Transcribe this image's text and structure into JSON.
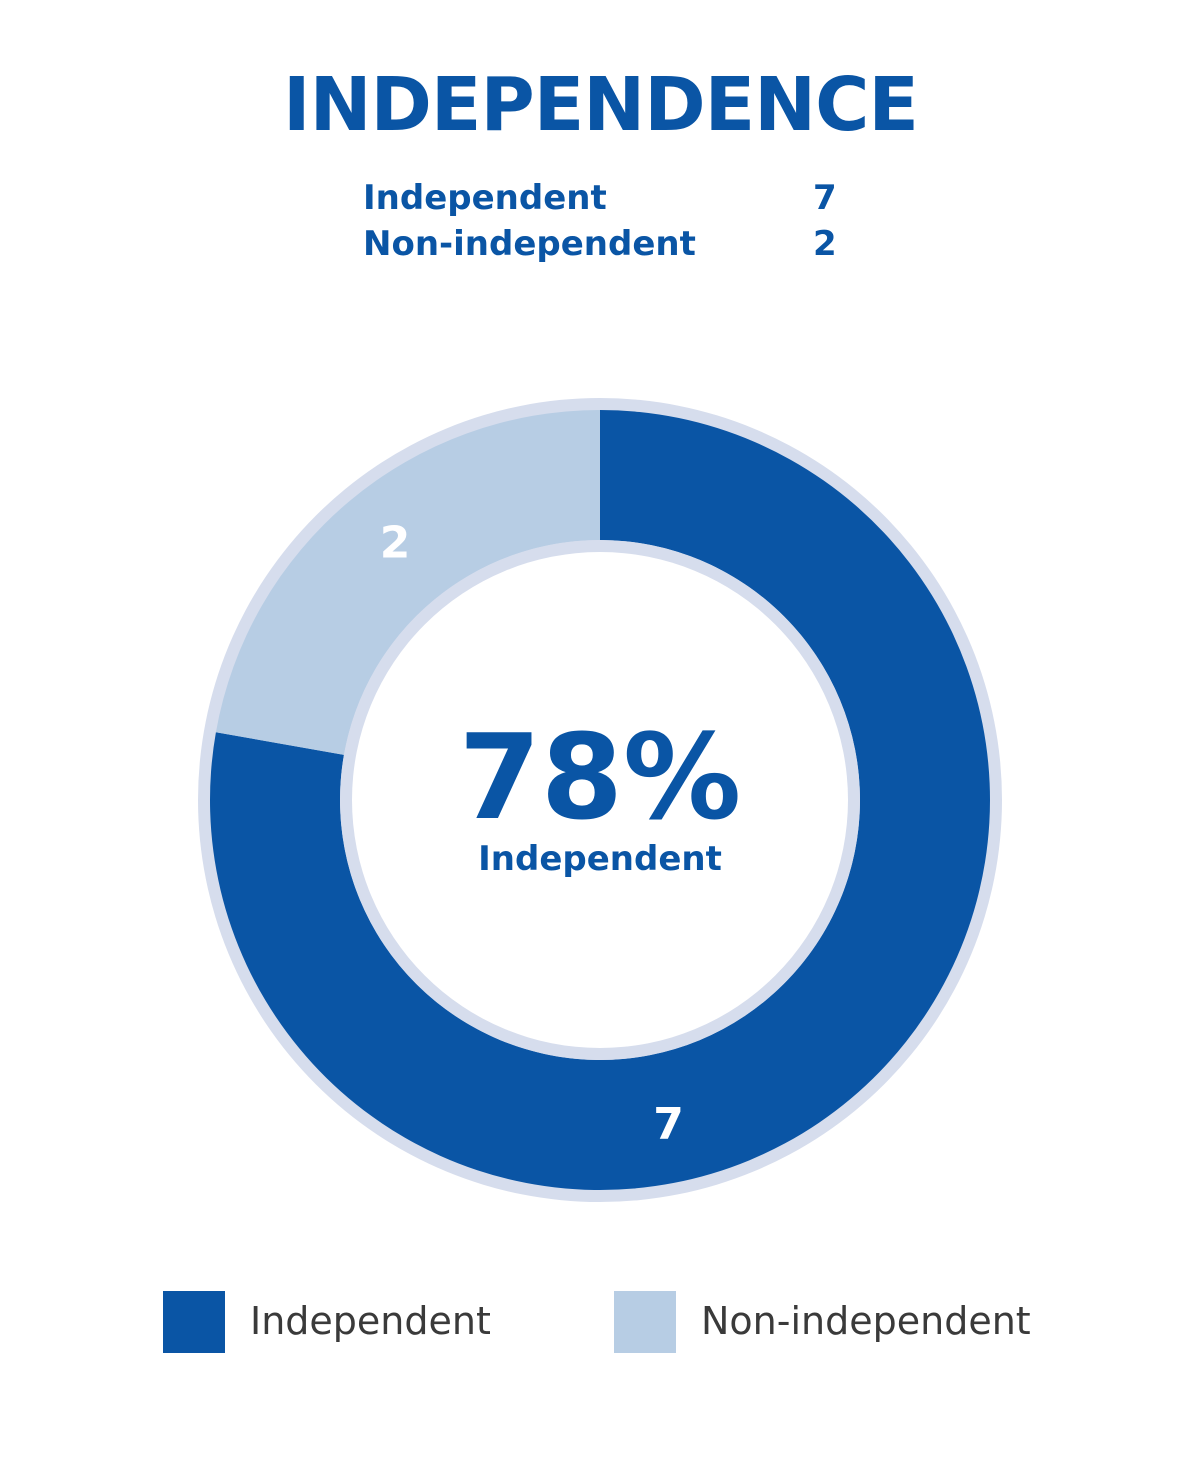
{
  "title": "INDEPENDENCE",
  "summary": [
    {
      "label": "Independent",
      "value": "7"
    },
    {
      "label": "Non-independent",
      "value": "2"
    }
  ],
  "center": {
    "value": "78%",
    "label": "Independent"
  },
  "colors": {
    "independent": "#0a55a5",
    "non_independent": "#b7cde4",
    "ring": "#d6dded",
    "title": "#0a55a5"
  },
  "chart_data": {
    "type": "pie",
    "title": "INDEPENDENCE",
    "categories": [
      "Independent",
      "Non-independent"
    ],
    "values": [
      7,
      2
    ],
    "center_label": "78% Independent",
    "legend_position": "bottom"
  },
  "legend": [
    {
      "label": "Independent",
      "color": "#0a55a5"
    },
    {
      "label": "Non-independent",
      "color": "#b7cde4"
    }
  ]
}
